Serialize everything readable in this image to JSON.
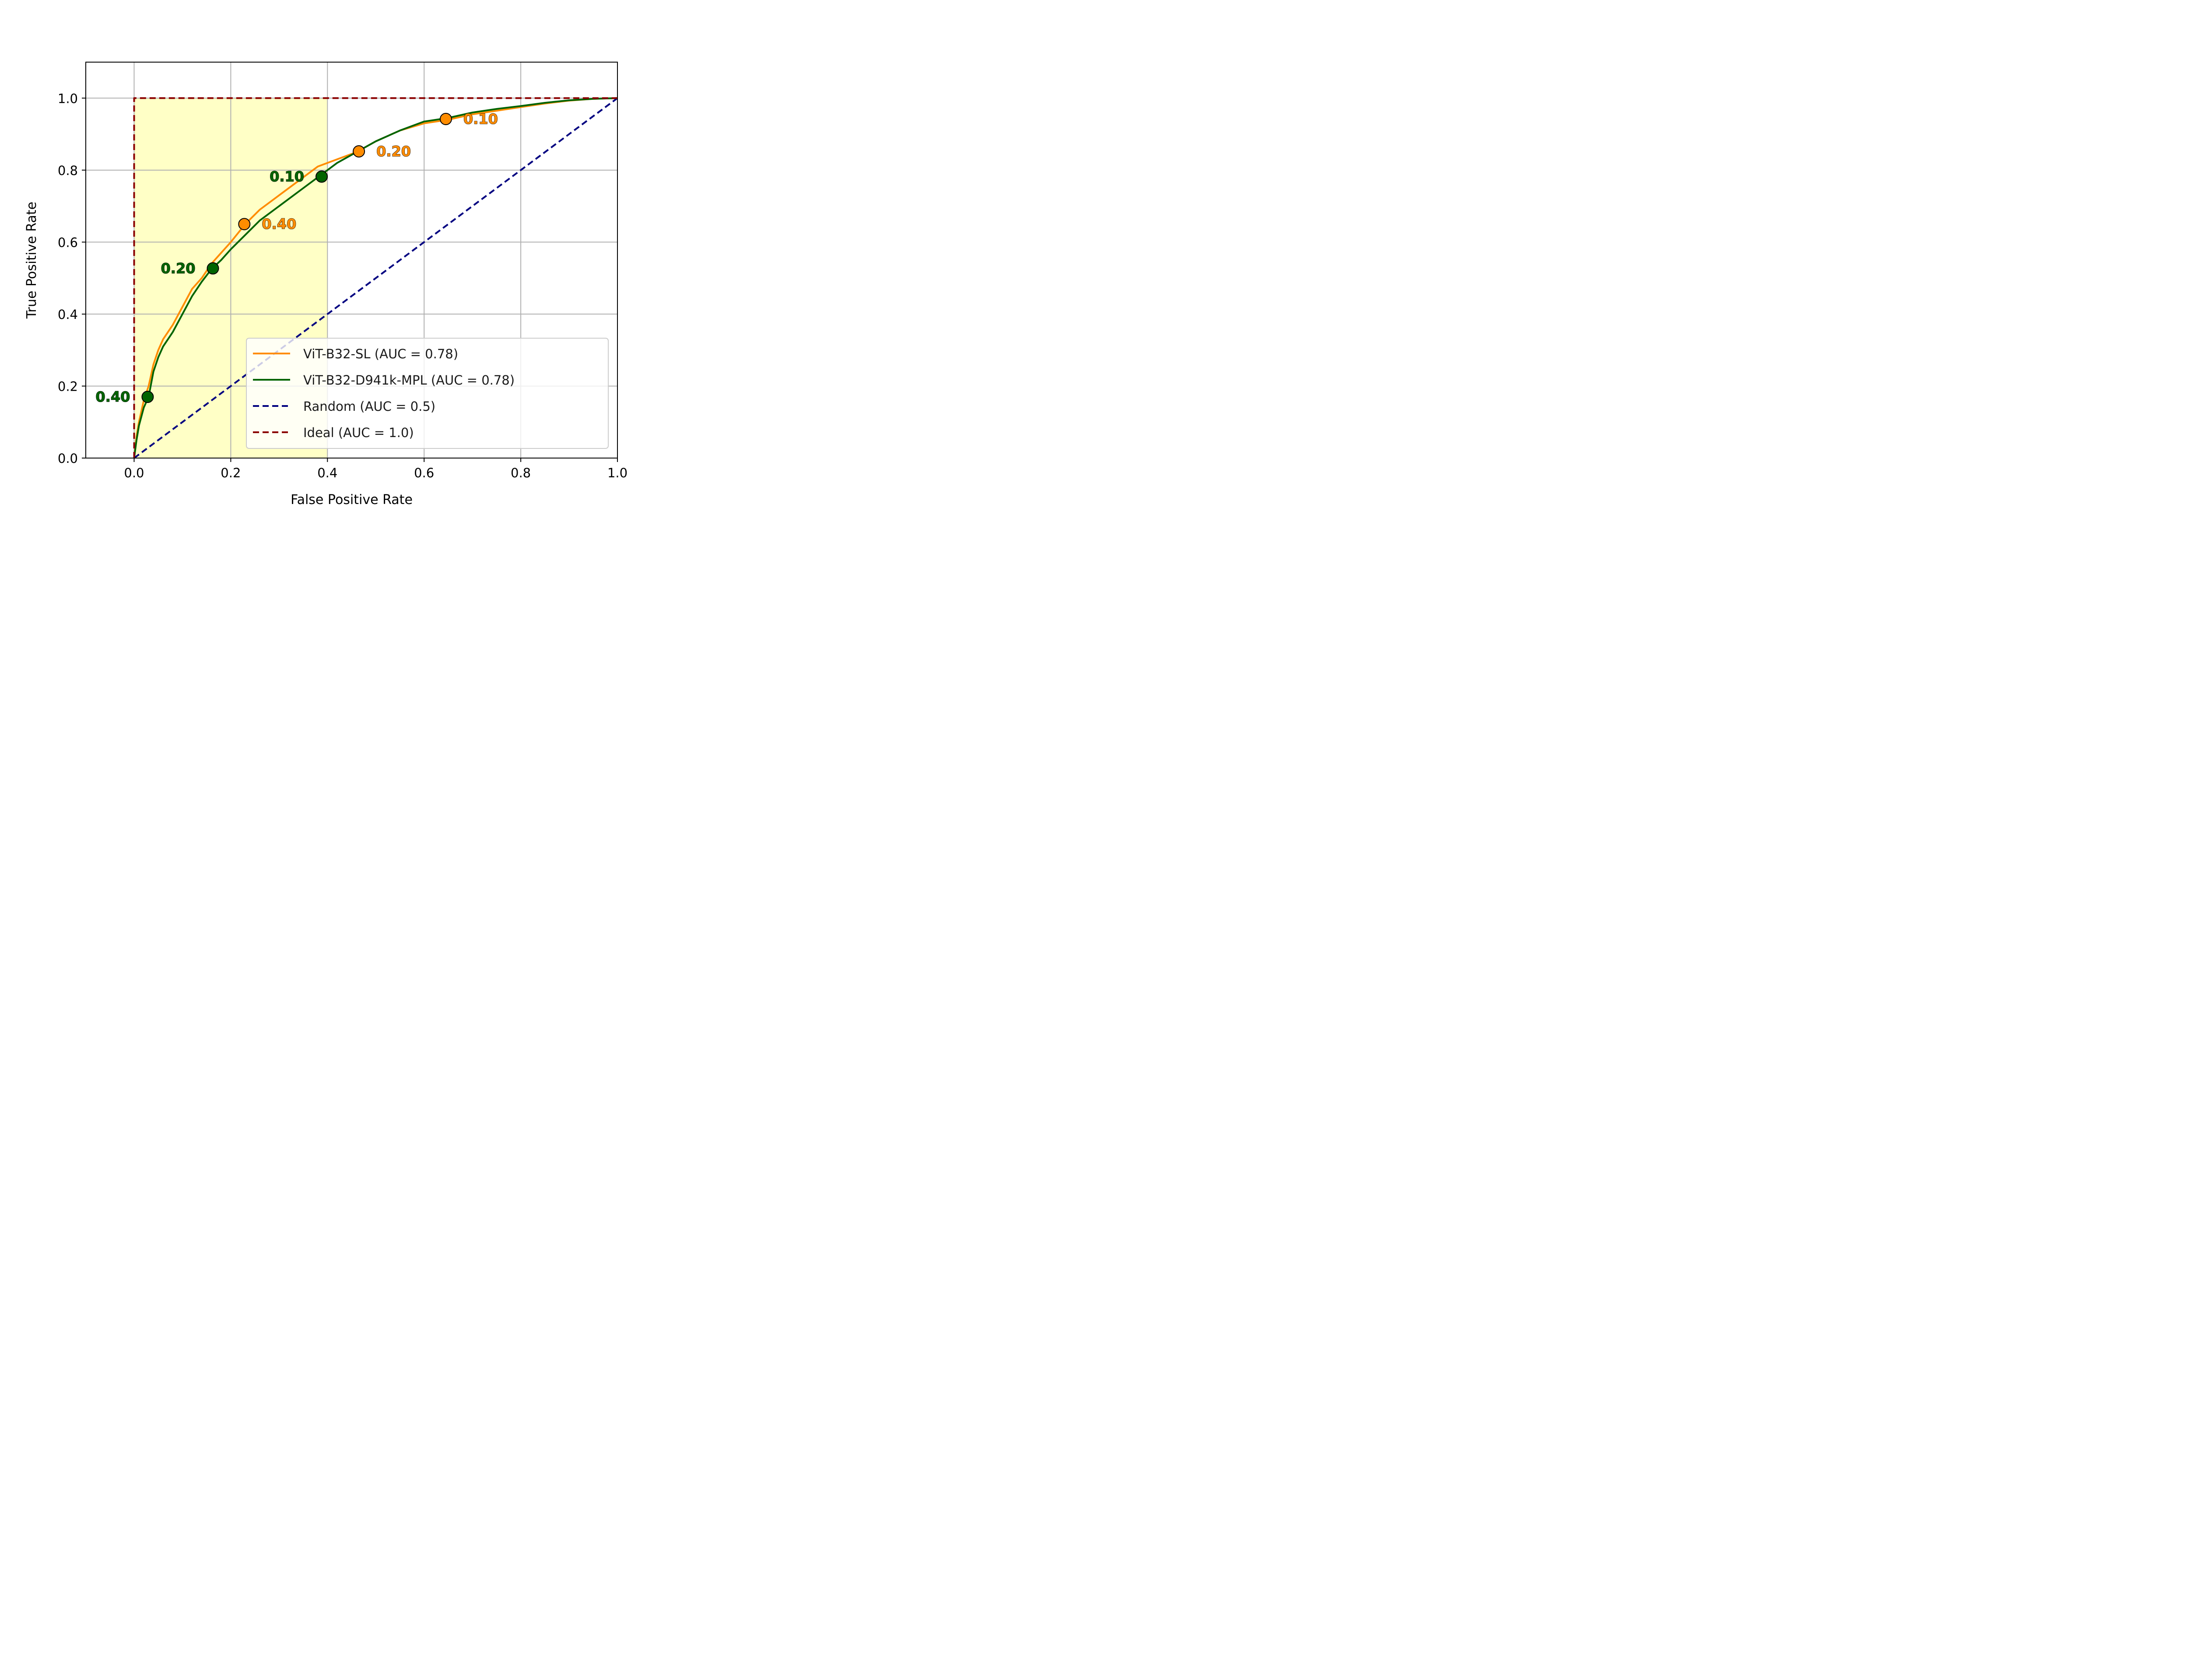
{
  "chart_data": {
    "type": "line",
    "title": "",
    "xlabel": "False Positive Rate",
    "ylabel": "True Positive Rate",
    "xlim": [
      -0.1,
      1.0
    ],
    "ylim": [
      0.0,
      1.1
    ],
    "xticks": [
      "0.0",
      "0.2",
      "0.4",
      "0.6",
      "0.8",
      "1.0"
    ],
    "yticks": [
      "0.0",
      "0.2",
      "0.4",
      "0.6",
      "0.8",
      "1.0"
    ],
    "grid": true,
    "legend_position": "lower-right",
    "shaded_region": {
      "x": [
        0.0,
        0.4
      ],
      "y": [
        0.0,
        1.0
      ],
      "color": "#ffffc0"
    },
    "series": [
      {
        "name": "ViT-B32-SL (AUC = 0.78)",
        "color": "#ff8c00",
        "style": "solid",
        "x": [
          0.0,
          0.005,
          0.01,
          0.02,
          0.03,
          0.04,
          0.05,
          0.06,
          0.08,
          0.1,
          0.12,
          0.14,
          0.16,
          0.18,
          0.2,
          0.23,
          0.26,
          0.3,
          0.34,
          0.38,
          0.42,
          0.46,
          0.5,
          0.55,
          0.6,
          0.65,
          0.7,
          0.75,
          0.8,
          0.85,
          0.9,
          0.95,
          1.0
        ],
        "y": [
          0.0,
          0.06,
          0.1,
          0.16,
          0.2,
          0.26,
          0.3,
          0.33,
          0.37,
          0.42,
          0.47,
          0.5,
          0.54,
          0.57,
          0.6,
          0.65,
          0.69,
          0.73,
          0.77,
          0.81,
          0.83,
          0.85,
          0.88,
          0.91,
          0.93,
          0.94,
          0.955,
          0.965,
          0.975,
          0.985,
          0.993,
          0.998,
          1.0
        ],
        "thresholds": [
          {
            "label": "0.40",
            "x": 0.228,
            "y": 0.65
          },
          {
            "label": "0.20",
            "x": 0.465,
            "y": 0.852
          },
          {
            "label": "0.10",
            "x": 0.645,
            "y": 0.942
          }
        ]
      },
      {
        "name": "ViT-B32-D941k-MPL (AUC = 0.78)",
        "color": "#006400",
        "style": "solid",
        "x": [
          0.0,
          0.005,
          0.01,
          0.02,
          0.03,
          0.04,
          0.05,
          0.06,
          0.08,
          0.1,
          0.12,
          0.14,
          0.16,
          0.18,
          0.2,
          0.23,
          0.26,
          0.3,
          0.34,
          0.38,
          0.42,
          0.46,
          0.5,
          0.55,
          0.6,
          0.65,
          0.7,
          0.75,
          0.8,
          0.85,
          0.9,
          0.95,
          1.0
        ],
        "y": [
          0.0,
          0.05,
          0.09,
          0.14,
          0.17,
          0.24,
          0.28,
          0.31,
          0.35,
          0.4,
          0.45,
          0.49,
          0.525,
          0.55,
          0.58,
          0.62,
          0.66,
          0.7,
          0.74,
          0.78,
          0.82,
          0.85,
          0.88,
          0.91,
          0.935,
          0.945,
          0.96,
          0.97,
          0.978,
          0.987,
          0.994,
          0.998,
          1.0
        ],
        "thresholds": [
          {
            "label": "0.40",
            "x": 0.028,
            "y": 0.17
          },
          {
            "label": "0.20",
            "x": 0.163,
            "y": 0.527
          },
          {
            "label": "0.10",
            "x": 0.388,
            "y": 0.782
          }
        ]
      },
      {
        "name": "Random (AUC = 0.5)",
        "color": "#000080",
        "style": "dashed",
        "x": [
          0.0,
          1.0
        ],
        "y": [
          0.0,
          1.0
        ]
      },
      {
        "name": "Ideal (AUC = 1.0)",
        "color": "#8b0000",
        "style": "dashed",
        "x": [
          0.0,
          0.0,
          1.0
        ],
        "y": [
          0.0,
          1.0,
          1.0
        ]
      }
    ]
  }
}
